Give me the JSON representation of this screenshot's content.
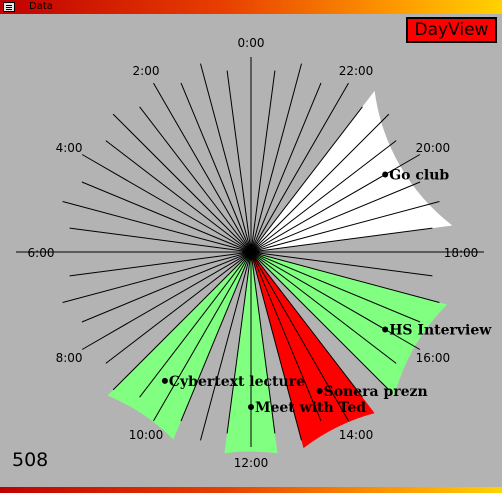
{
  "window": {
    "title": "Data"
  },
  "toolbar": {
    "dayview_label": "DayView"
  },
  "counter": "508",
  "hour_labels": [
    "0:00",
    "2:00",
    "4:00",
    "6:00",
    "8:00",
    "10:00",
    "12:00",
    "14:00",
    "16:00",
    "18:00",
    "20:00",
    "22:00"
  ],
  "events": [
    {
      "label": "Cybertext lecture",
      "start_hour": 9.0,
      "end_hour": 10.5,
      "color": "#80ff80"
    },
    {
      "label": "Meet with Ted",
      "start_hour": 11.5,
      "end_hour": 12.5,
      "color": "#80ff80"
    },
    {
      "label": "Sonera prezn",
      "start_hour": 13.0,
      "end_hour": 14.5,
      "color": "#ff0000"
    },
    {
      "label": "HS Interview",
      "start_hour": 15.0,
      "end_hour": 17.0,
      "color": "#80ff80"
    },
    {
      "label": "Go club",
      "start_hour": 18.5,
      "end_hour": 21.5,
      "color": "#ffffff"
    }
  ],
  "colors": {
    "background": "#b3b3b3",
    "free": "#80ff80",
    "busy": "#ff0000",
    "other": "#ffffff"
  }
}
